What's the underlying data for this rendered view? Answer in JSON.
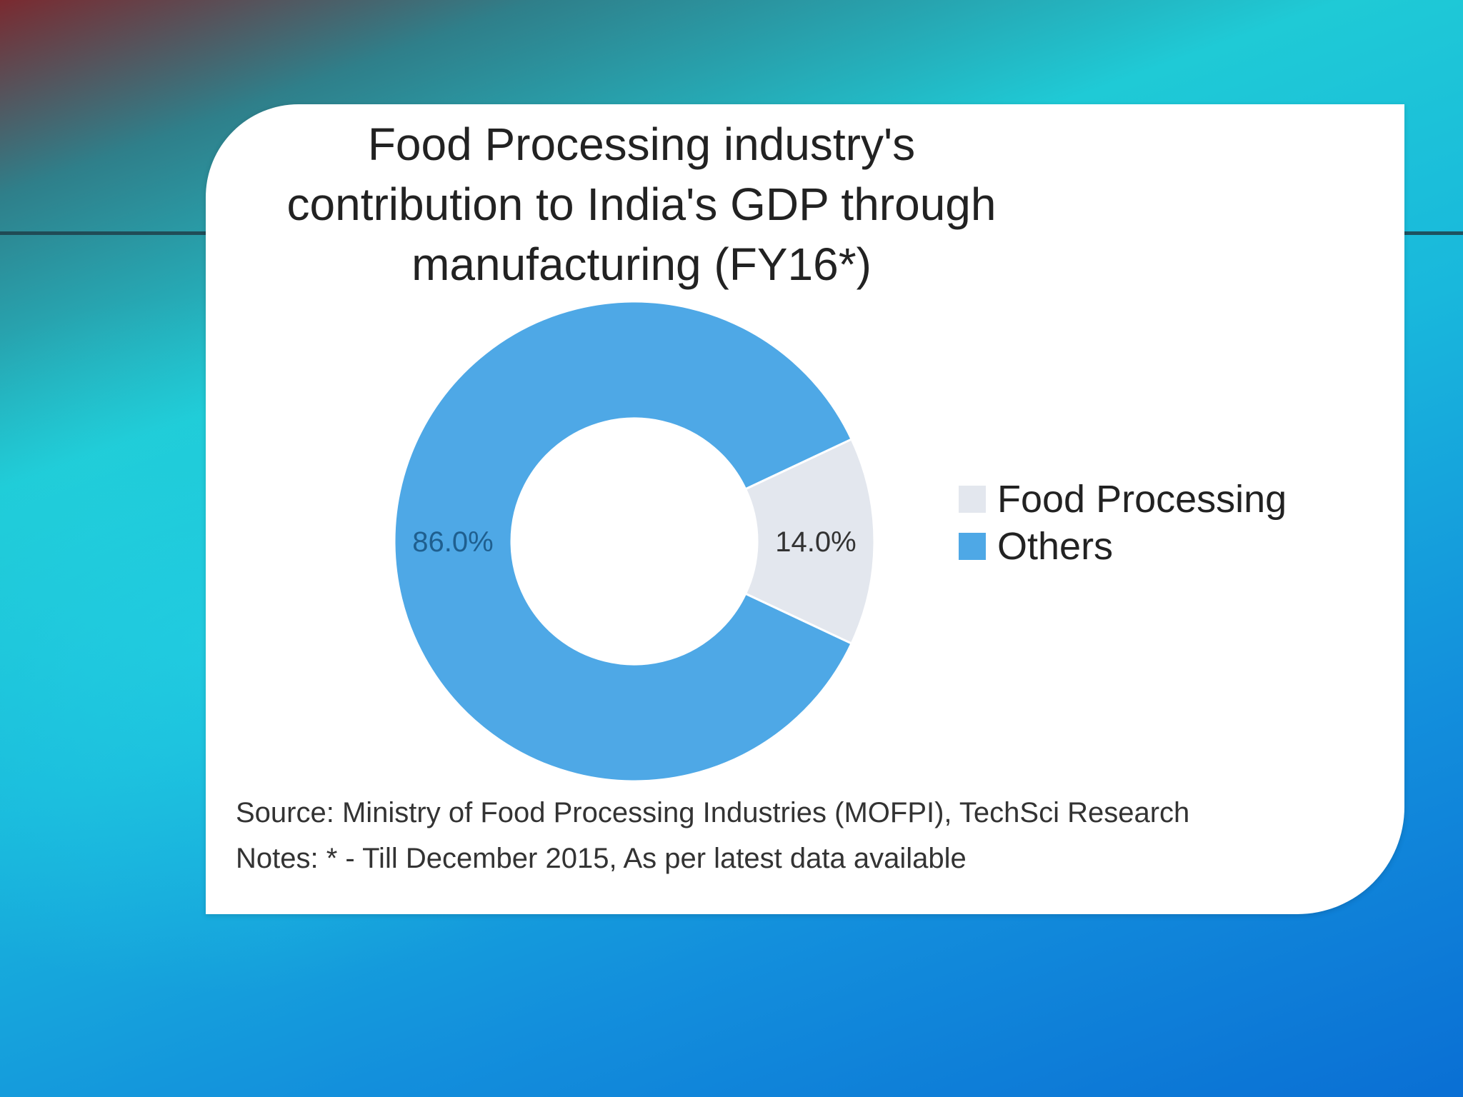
{
  "colors": {
    "food_processing": "#e3e7ee",
    "others": "#4ea8e6"
  },
  "chart_data": {
    "type": "pie",
    "title": "Food Processing industry's contribution to India's GDP through manufacturing (FY16*)",
    "title_lines": [
      "Food Processing industry's",
      "contribution to India's GDP through",
      "manufacturing (FY16*)"
    ],
    "donut": true,
    "categories": [
      "Food Processing",
      "Others"
    ],
    "values": [
      14.0,
      86.0
    ],
    "data_labels": [
      "14.0%",
      "86.0%"
    ],
    "legend_position": "right",
    "source": "Source: Ministry of Food Processing Industries (MOFPI), TechSci Research",
    "notes": "Notes: * - Till December 2015, As per latest data available"
  }
}
